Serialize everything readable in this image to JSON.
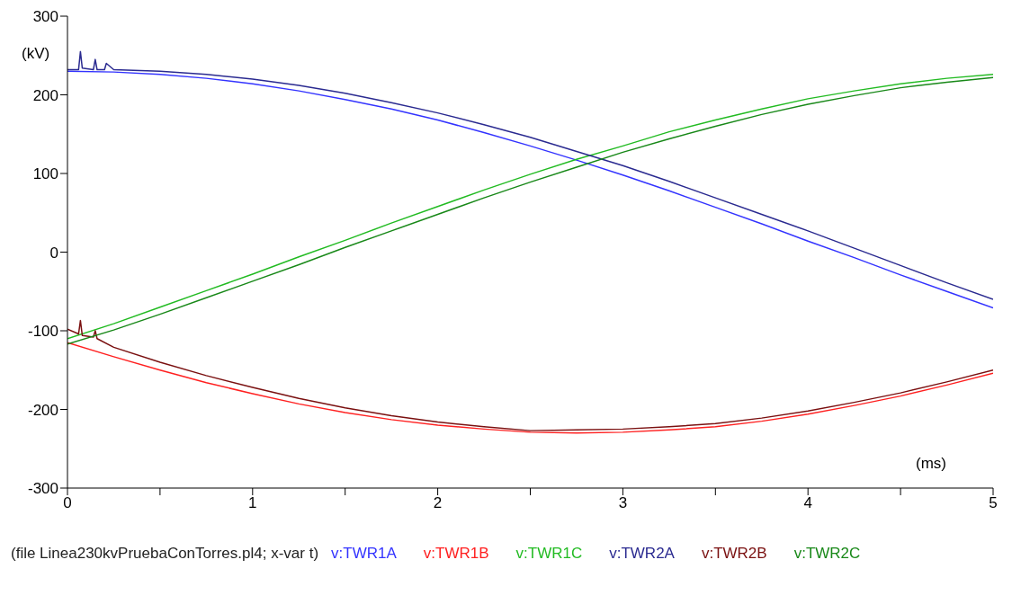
{
  "chart_data": {
    "type": "line",
    "xlabel": "(ms)",
    "ylabel": "(kV)",
    "x": [
      0,
      0.25,
      0.5,
      0.75,
      1,
      1.25,
      1.5,
      1.75,
      2,
      2.25,
      2.5,
      2.75,
      3,
      3.25,
      3.5,
      3.75,
      4,
      4.25,
      4.5,
      4.75,
      5
    ],
    "xlim": [
      0,
      5
    ],
    "xticks": [
      0,
      {
        "value": 0.5,
        "label": null
      },
      1,
      {
        "value": 1.5,
        "label": null
      },
      2,
      {
        "value": 2.5,
        "label": null
      },
      3,
      {
        "value": 3.5,
        "label": null
      },
      4,
      {
        "value": 4.5,
        "label": null
      },
      5
    ],
    "ylim": [
      -300,
      300
    ],
    "yticks": [
      -300,
      -200,
      -100,
      0,
      100,
      200,
      300
    ],
    "grid": false,
    "legend": "bottom",
    "marker": "none",
    "line_style": "solid",
    "annotations": [
      "(file Linea230kvPruebaConTorres.pl4; x-var t)"
    ],
    "series": [
      {
        "name": "v:TWR1A",
        "color": "#3333ff",
        "values": [
          230,
          229,
          226,
          221,
          214,
          205,
          194,
          182,
          168,
          152,
          135,
          117,
          98,
          78,
          57,
          36,
          14,
          -7,
          -29,
          -50,
          -71
        ]
      },
      {
        "name": "v:TWR1B",
        "color": "#ff2020",
        "values": [
          -115,
          -133,
          -150,
          -166,
          -180,
          -193,
          -204,
          -213,
          -220,
          -225,
          -229,
          -230,
          -229,
          -226,
          -222,
          -215,
          -206,
          -195,
          -183,
          -169,
          -154
        ]
      },
      {
        "name": "v:TWR1C",
        "color": "#22bb22",
        "values": [
          -110,
          -91,
          -70,
          -49,
          -28,
          -6,
          15,
          37,
          58,
          79,
          99,
          118,
          135,
          153,
          168,
          182,
          195,
          205,
          214,
          221,
          226
        ]
      },
      {
        "name": "v:TWR2A",
        "color": "#2a2a90",
        "x": [
          0,
          0.06,
          0.07,
          0.08,
          0.14,
          0.15,
          0.16,
          0.2,
          0.21,
          0.25,
          0.5,
          0.75,
          1,
          1.25,
          1.5,
          1.75,
          2,
          2.25,
          2.5,
          2.75,
          3,
          3.25,
          3.5,
          3.75,
          4,
          4.25,
          4.5,
          4.75,
          5
        ],
        "values": [
          232,
          232,
          255,
          234,
          232,
          245,
          232,
          232,
          240,
          232,
          230,
          226,
          220,
          212,
          202,
          190,
          177,
          162,
          146,
          128,
          110,
          90,
          69,
          48,
          27,
          5,
          -17,
          -39,
          -60
        ]
      },
      {
        "name": "v:TWR2B",
        "color": "#7a1010",
        "x": [
          0,
          0.06,
          0.07,
          0.08,
          0.14,
          0.15,
          0.16,
          0.25,
          0.5,
          0.75,
          1,
          1.25,
          1.5,
          1.75,
          2,
          2.25,
          2.5,
          2.75,
          3,
          3.25,
          3.5,
          3.75,
          4,
          4.25,
          4.5,
          4.75,
          5
        ],
        "values": [
          -98,
          -104,
          -87,
          -106,
          -108,
          -100,
          -110,
          -121,
          -140,
          -157,
          -172,
          -186,
          -198,
          -208,
          -216,
          -222,
          -227,
          -226,
          -225,
          -222,
          -218,
          -211,
          -202,
          -191,
          -179,
          -165,
          -150
        ]
      },
      {
        "name": "v:TWR2C",
        "color": "#188818",
        "values": [
          -117,
          -99,
          -79,
          -58,
          -37,
          -16,
          6,
          27,
          48,
          69,
          89,
          108,
          127,
          144,
          160,
          175,
          188,
          199,
          209,
          216,
          222
        ]
      }
    ]
  }
}
